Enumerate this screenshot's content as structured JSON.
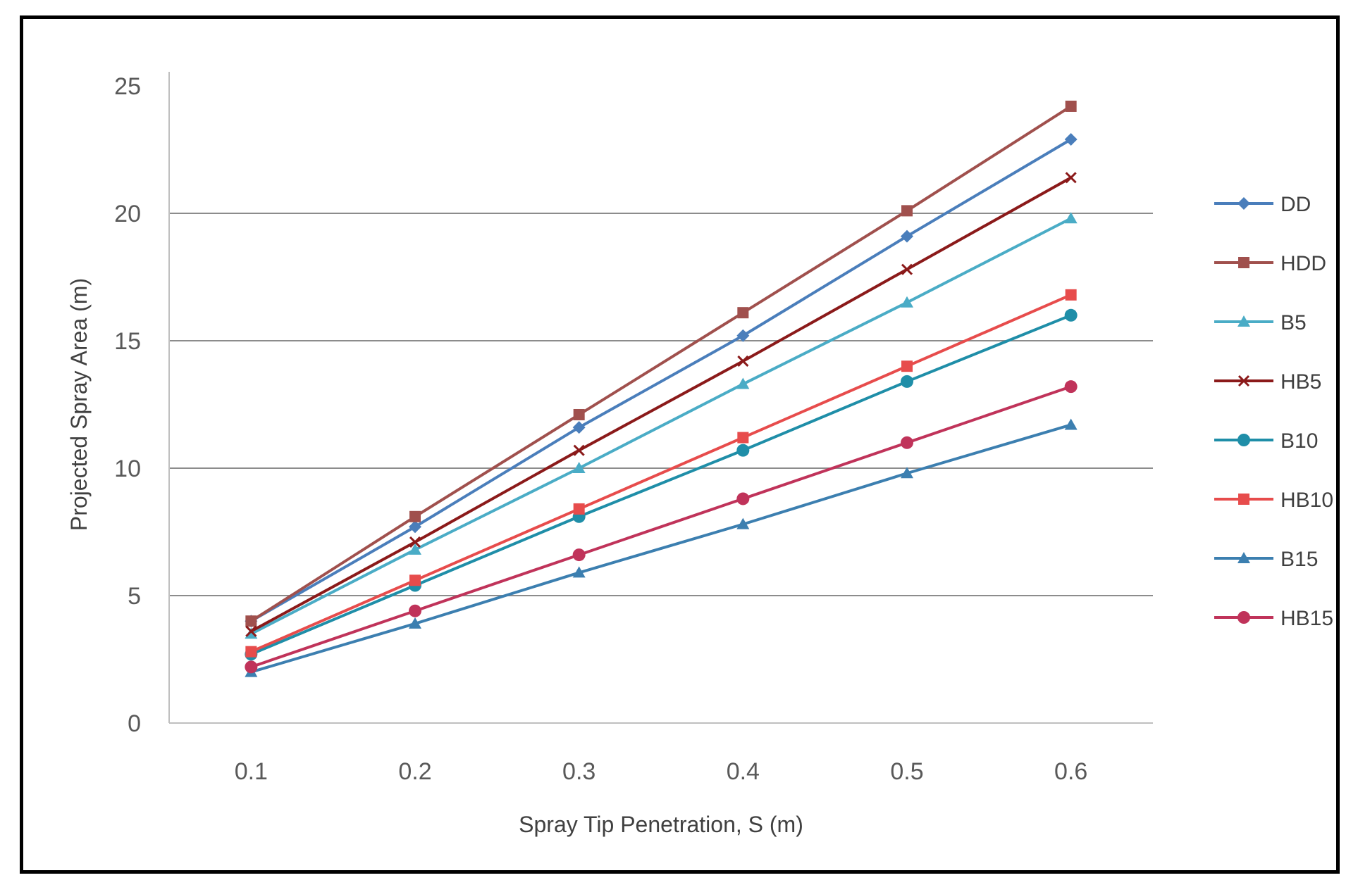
{
  "chart_data": {
    "type": "line",
    "title": "",
    "xlabel": "Spray Tip Penetration, S (m)",
    "ylabel": "Projected Spray Area (m)",
    "x": [
      0.1,
      0.2,
      0.3,
      0.4,
      0.5,
      0.6
    ],
    "x_tick_labels": [
      "0.1",
      "0.2",
      "0.3",
      "0.4",
      "0.5",
      "0.6"
    ],
    "ylim": [
      0,
      25
    ],
    "y_ticks": [
      0,
      5,
      10,
      15,
      20,
      25
    ],
    "y_tick_labels": [
      "0",
      "5",
      "10",
      "15",
      "20",
      "25"
    ],
    "grid": "horizontal",
    "legend_position": "right",
    "series": [
      {
        "name": "DD",
        "color": "#4a7ebb",
        "marker": "diamond",
        "values": [
          4.0,
          7.7,
          11.6,
          15.2,
          19.1,
          22.9
        ]
      },
      {
        "name": "HDD",
        "color": "#a0504d",
        "marker": "square",
        "values": [
          4.0,
          8.1,
          12.1,
          16.1,
          20.1,
          24.2
        ]
      },
      {
        "name": "B5",
        "color": "#4aacc6",
        "marker": "triangle",
        "values": [
          3.5,
          6.8,
          10.0,
          13.3,
          16.5,
          19.8
        ]
      },
      {
        "name": "HB5",
        "color": "#8b1a1a",
        "marker": "x",
        "values": [
          3.6,
          7.1,
          10.7,
          14.2,
          17.8,
          21.4
        ]
      },
      {
        "name": "B10",
        "color": "#1f8ea8",
        "marker": "circle",
        "values": [
          2.7,
          5.4,
          8.1,
          10.7,
          13.4,
          16.0
        ]
      },
      {
        "name": "HB10",
        "color": "#e74c4c",
        "marker": "square",
        "values": [
          2.8,
          5.6,
          8.4,
          11.2,
          14.0,
          16.8
        ]
      },
      {
        "name": "B15",
        "color": "#3c7fb0",
        "marker": "triangle",
        "values": [
          2.0,
          3.9,
          5.9,
          7.8,
          9.8,
          11.7
        ]
      },
      {
        "name": "HB15",
        "color": "#c0335a",
        "marker": "circle",
        "values": [
          2.2,
          4.4,
          6.6,
          8.8,
          11.0,
          13.2
        ]
      }
    ]
  }
}
